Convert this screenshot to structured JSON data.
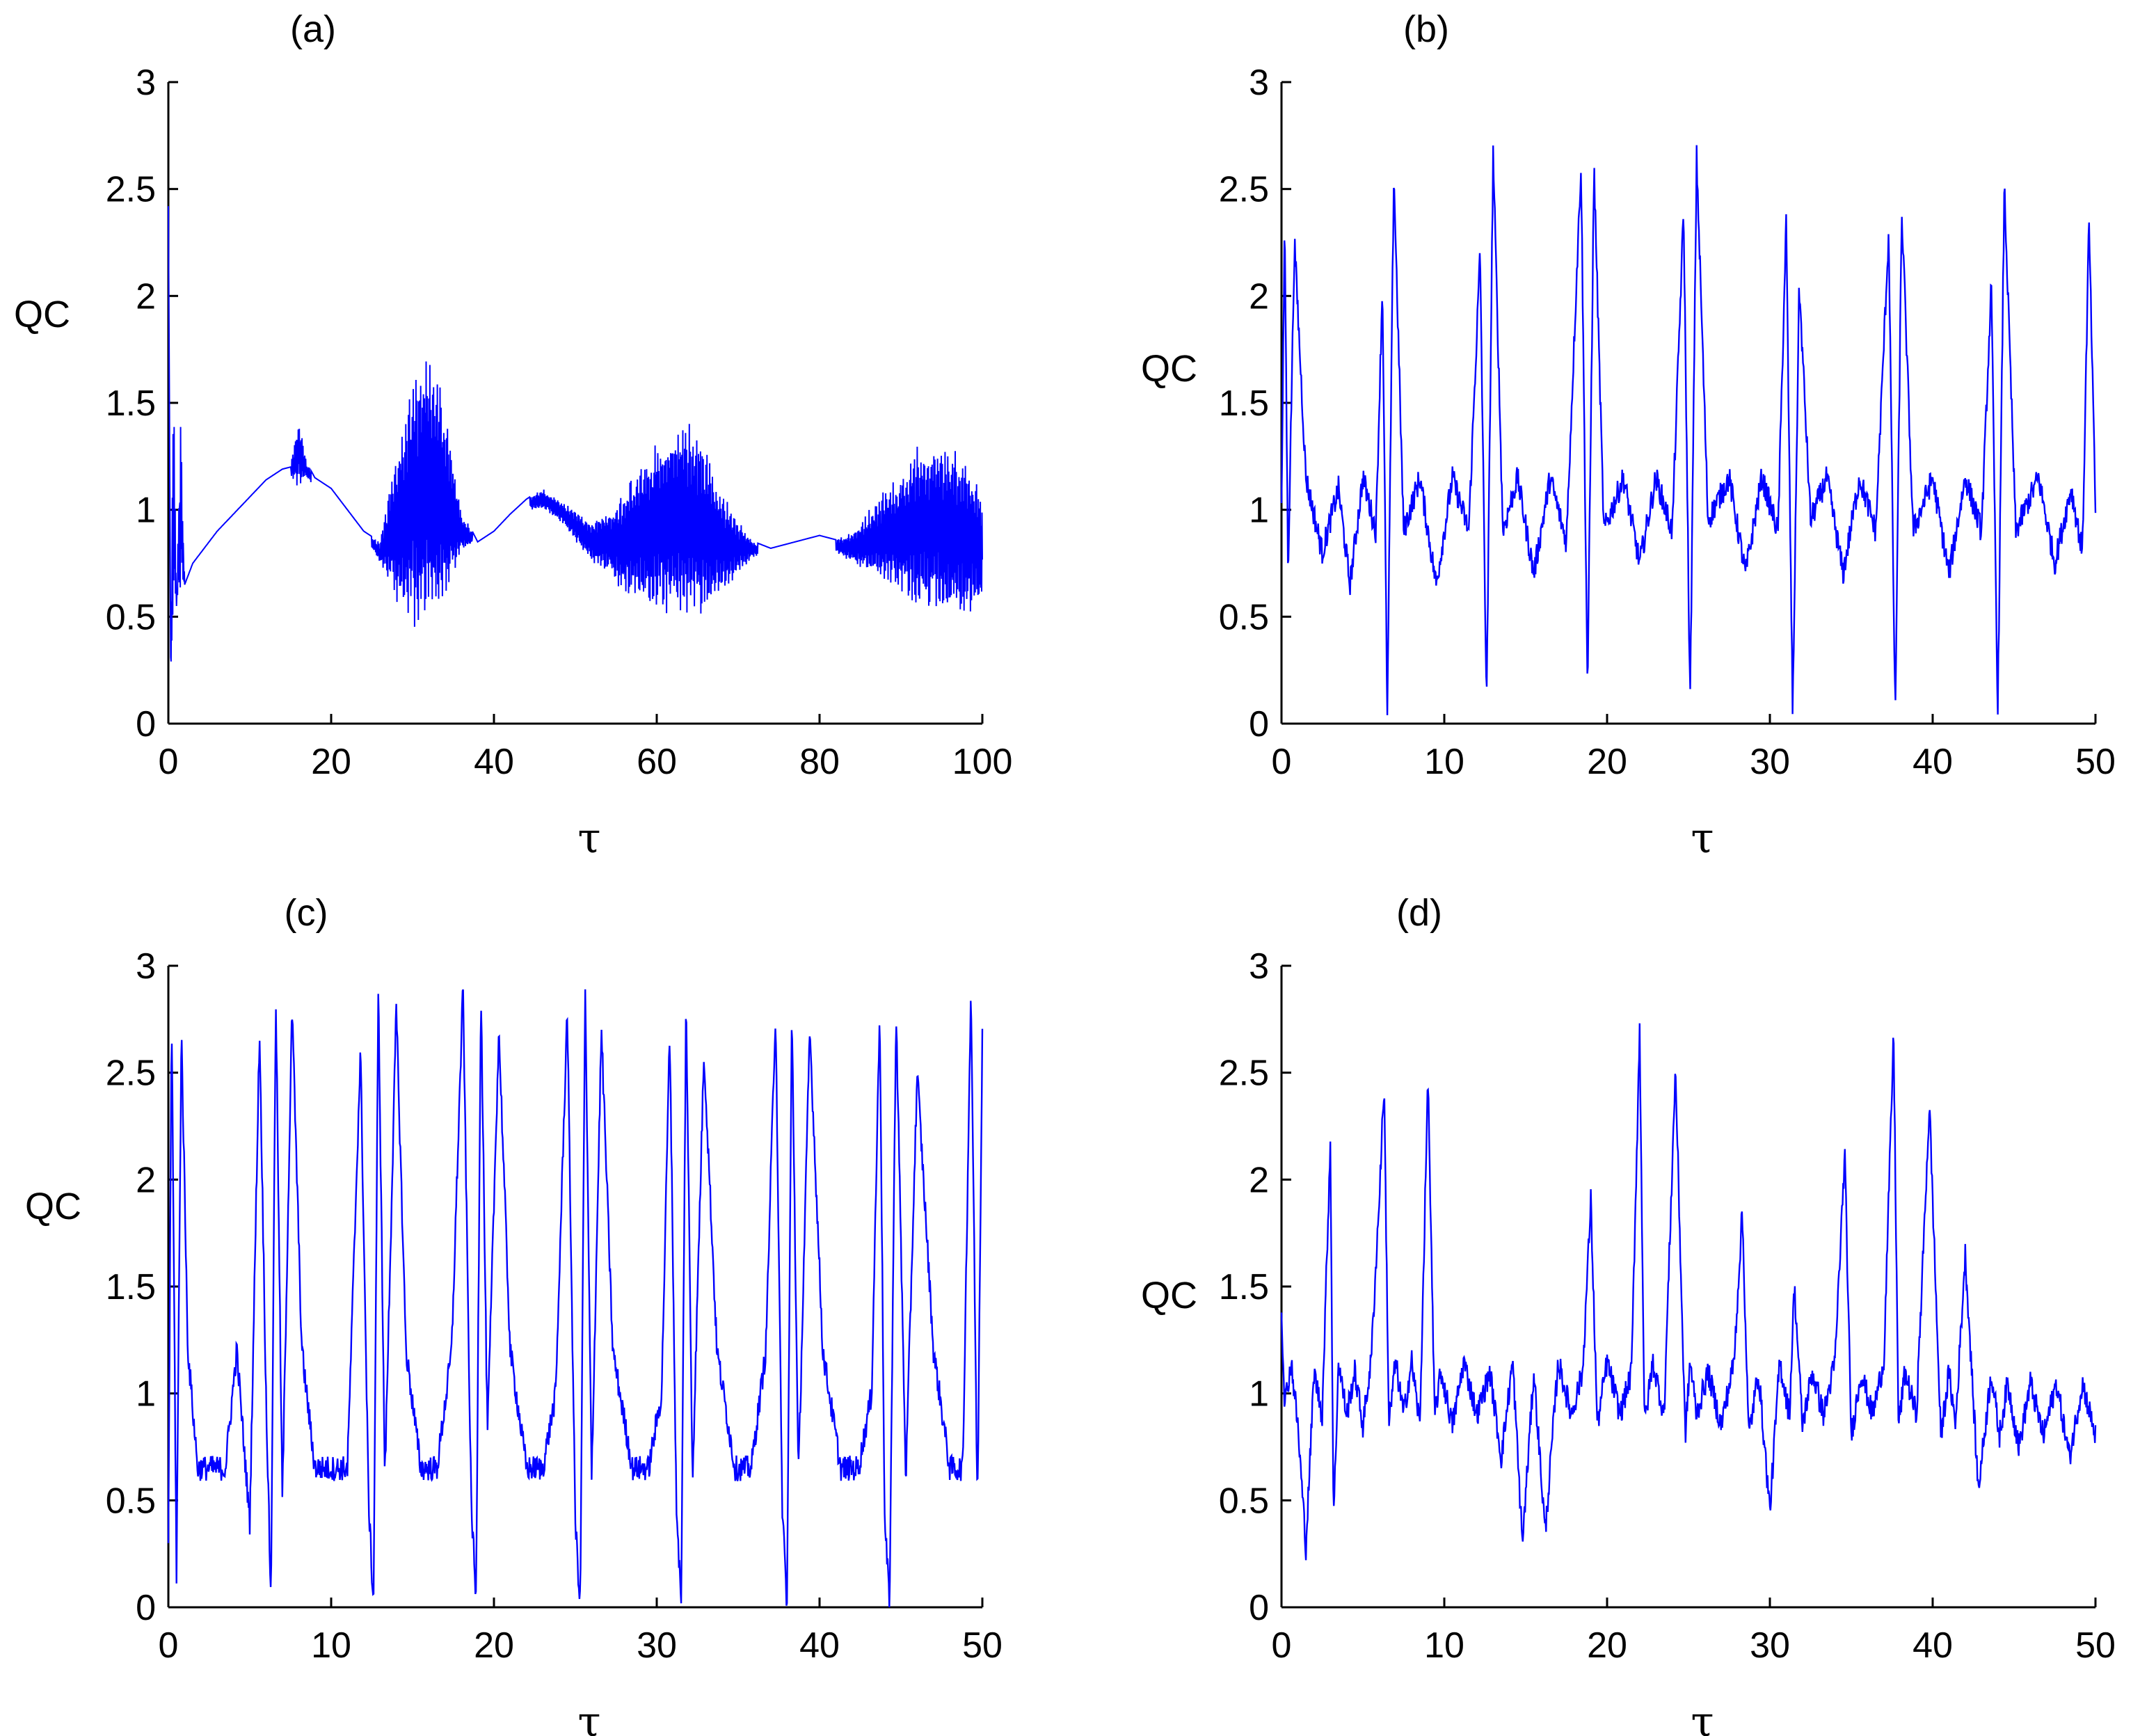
{
  "figure": {
    "line_color": "#0000ff",
    "axis_color": "#000000"
  },
  "chart_data": [
    {
      "type": "line",
      "title": "(a)",
      "xlabel": "τ",
      "ylabel": "QC",
      "xlim": [
        0,
        100
      ],
      "ylim": [
        0,
        3
      ],
      "xticks": [
        "0",
        "20",
        "40",
        "60",
        "80",
        "100"
      ],
      "yticks": [
        "0",
        "0.5",
        "1",
        "1.5",
        "2",
        "2.5",
        "3"
      ],
      "grid": false,
      "series": [
        {
          "values_desc": "",
          "x": [
            0,
            0.3,
            0.6,
            1,
            1.5,
            2,
            3,
            4,
            5,
            6,
            8,
            10,
            12,
            14,
            15,
            16,
            17,
            18,
            20,
            22,
            24,
            26,
            28,
            30,
            32,
            34,
            36,
            38,
            40,
            42,
            44,
            46,
            48,
            50,
            52,
            54,
            56,
            58,
            60,
            62,
            64,
            66,
            68,
            70,
            72,
            74,
            76,
            78,
            80,
            82,
            84,
            86,
            88,
            90,
            92,
            94,
            96,
            98,
            100
          ],
          "y": [
            2.42,
            0.25,
            1.75,
            0.55,
            1.45,
            0.65,
            0.75,
            0.8,
            0.85,
            0.9,
            0.98,
            1.06,
            1.14,
            1.19,
            1.2,
            1.45,
            1.22,
            1.15,
            1.1,
            1.0,
            0.9,
            0.85,
            1.3,
            1.6,
            1.8,
            1.5,
            1.0,
            0.85,
            0.9,
            0.98,
            1.05,
            1.1,
            1.05,
            1.0,
            0.95,
            1.0,
            1.1,
            1.25,
            1.35,
            1.4,
            1.45,
            1.3,
            1.1,
            0.95,
            0.85,
            0.82,
            0.84,
            0.86,
            0.88,
            0.86,
            0.9,
            1.0,
            1.1,
            1.2,
            1.3,
            1.34,
            1.3,
            1.25,
            1.1
          ],
          "envelope_low": [
            2.42,
            0.2,
            0.5,
            0.55,
            0.6,
            0.65,
            0.75,
            0.8,
            0.85,
            0.9,
            0.98,
            1.06,
            1.14,
            1.17,
            1.15,
            1.1,
            1.15,
            1.1,
            1.05,
            0.98,
            0.88,
            0.75,
            0.55,
            0.45,
            0.45,
            0.55,
            0.8,
            0.85,
            0.88,
            0.95,
            1.0,
            1.0,
            0.95,
            0.85,
            0.75,
            0.7,
            0.6,
            0.55,
            0.5,
            0.5,
            0.48,
            0.5,
            0.6,
            0.7,
            0.78,
            0.8,
            0.82,
            0.84,
            0.85,
            0.8,
            0.75,
            0.7,
            0.65,
            0.6,
            0.55,
            0.52,
            0.5,
            0.5,
            0.52
          ]
        }
      ]
    },
    {
      "type": "line",
      "title": "(b)",
      "xlabel": "τ",
      "ylabel": "QC",
      "xlim": [
        0,
        50
      ],
      "ylim": [
        0,
        3
      ],
      "xticks": [
        "0",
        "10",
        "20",
        "30",
        "40",
        "50"
      ],
      "yticks": [
        "0",
        "0.5",
        "1",
        "1.5",
        "2",
        "2.5",
        "3"
      ],
      "grid": false,
      "series": [
        {
          "x": [
            0,
            0.2,
            0.4,
            0.8,
            1.5,
            2.5,
            3.5,
            4.2,
            5,
            5.8,
            6.2,
            6.5,
            6.9,
            7.5,
            8.5,
            9.5,
            10.5,
            11.5,
            12.2,
            12.6,
            13.0,
            13.6,
            14.5,
            15.5,
            16.5,
            17.5,
            18.4,
            18.8,
            19.2,
            19.8,
            21,
            22,
            23,
            24,
            24.7,
            25.1,
            25.5,
            26.2,
            27.5,
            28.5,
            29.5,
            30.5,
            31.0,
            31.4,
            31.8,
            32.5,
            33.5,
            34.5,
            35.5,
            36.5,
            37.3,
            37.7,
            38.1,
            38.8,
            40,
            41,
            42,
            43,
            43.6,
            44.0,
            44.4,
            45.1,
            46.5,
            47.5,
            48.5,
            49.2,
            49.6,
            50
          ],
          "y": [
            1.0,
            2.35,
            0.7,
            2.25,
            1.15,
            0.8,
            1.1,
            0.65,
            1.15,
            0.9,
            2.05,
            0.02,
            2.58,
            0.9,
            1.15,
            0.65,
            1.15,
            0.9,
            2.2,
            0.08,
            2.67,
            0.9,
            1.15,
            0.7,
            1.15,
            0.85,
            2.62,
            0.15,
            2.6,
            0.9,
            1.15,
            0.75,
            1.15,
            0.9,
            2.4,
            0.08,
            2.65,
            0.95,
            1.15,
            0.7,
            1.15,
            0.9,
            2.35,
            0.04,
            2.05,
            0.95,
            1.15,
            0.7,
            1.15,
            0.9,
            2.3,
            0.02,
            2.4,
            0.9,
            1.15,
            0.7,
            1.15,
            0.9,
            2.05,
            0.05,
            2.52,
            0.9,
            1.15,
            0.75,
            1.1,
            0.8,
            2.35,
            1.0
          ]
        }
      ]
    },
    {
      "type": "line",
      "title": "(c)",
      "xlabel": "τ",
      "ylabel": "QC",
      "xlim": [
        0,
        50
      ],
      "ylim": [
        0,
        3
      ],
      "xticks": [
        "0",
        "10",
        "20",
        "30",
        "40",
        "50"
      ],
      "yticks": [
        "0",
        "0.5",
        "1",
        "1.5",
        "2",
        "2.5",
        "3"
      ],
      "grid": false,
      "series": [
        {
          "x": [
            0,
            0.2,
            0.5,
            0.8,
            1.2,
            1.8,
            2.5,
            3.5,
            4.2,
            5.0,
            5.6,
            6.0,
            6.3,
            6.6,
            7.0,
            7.6,
            8.2,
            9,
            10,
            11,
            11.8,
            12.3,
            12.6,
            12.9,
            13.3,
            14,
            14.6,
            15.5,
            16.5,
            17.4,
            18.1,
            18.6,
            18.9,
            19.2,
            19.6,
            20.3,
            21,
            22,
            23,
            23.8,
            24.5,
            25.0,
            25.3,
            25.6,
            26.0,
            26.6,
            27.3,
            28.5,
            29.5,
            30.3,
            30.8,
            31.2,
            31.5,
            31.8,
            32.2,
            32.9,
            33.7,
            34.8,
            35.8,
            36.7,
            37.3,
            37.7,
            38.0,
            38.3,
            38.7,
            39.4,
            40.2,
            41.3,
            42.4,
            43.2,
            43.7,
            44.0,
            44.3,
            44.7,
            45.3,
            46,
            47,
            48,
            48.8,
            49.3,
            49.7,
            50
          ],
          "y": [
            0.3,
            2.8,
            0.15,
            2.7,
            1.2,
            0.65,
            0.65,
            0.65,
            1.2,
            0.4,
            2.7,
            1.0,
            0.02,
            2.88,
            0.5,
            2.8,
            1.2,
            0.65,
            0.65,
            0.65,
            2.6,
            0.5,
            0.0,
            2.9,
            0.6,
            2.8,
            1.2,
            0.65,
            0.65,
            1.2,
            2.9,
            0.5,
            0.02,
            2.9,
            0.8,
            2.7,
            1.2,
            0.65,
            0.65,
            1.0,
            2.8,
            0.4,
            0.0,
            2.9,
            0.6,
            2.7,
            1.2,
            0.65,
            0.65,
            1.0,
            2.7,
            0.5,
            0.0,
            2.85,
            0.6,
            2.6,
            1.2,
            0.65,
            0.65,
            1.2,
            2.8,
            0.5,
            0.0,
            2.8,
            0.6,
            2.7,
            1.2,
            0.65,
            0.65,
            1.0,
            2.8,
            0.4,
            0.02,
            2.8,
            0.6,
            2.5,
            1.2,
            0.65,
            0.65,
            2.9,
            0.45,
            2.7
          ]
        }
      ]
    },
    {
      "type": "line",
      "title": "(d)",
      "xlabel": "τ",
      "ylabel": "QC",
      "xlim": [
        0,
        50
      ],
      "ylim": [
        0,
        3
      ],
      "xticks": [
        "0",
        "10",
        "20",
        "30",
        "40",
        "50"
      ],
      "yticks": [
        "0",
        "0.5",
        "1",
        "1.5",
        "2",
        "2.5",
        "3"
      ],
      "grid": false,
      "series": [
        {
          "x": [
            0,
            0.2,
            0.6,
            1.0,
            1.5,
            2.0,
            2.5,
            3.0,
            3.2,
            3.5,
            4.0,
            4.5,
            5.0,
            5.5,
            6.0,
            6.3,
            6.6,
            7.0,
            7.5,
            8.0,
            8.5,
            9.0,
            9.4,
            9.8,
            10.5,
            11.2,
            12,
            12.8,
            13.5,
            14.2,
            14.8,
            15.5,
            16.2,
            17,
            17.8,
            18.5,
            19.0,
            19.4,
            20,
            20.8,
            21.5,
            22.0,
            22.3,
            22.8,
            23.5,
            24.2,
            24.8,
            25.1,
            25.5,
            26.2,
            27,
            27.8,
            28.3,
            28.7,
            29.3,
            30,
            30.6,
            31.2,
            31.5,
            32.0,
            32.6,
            33.3,
            34,
            34.6,
            35.0,
            35.6,
            36.3,
            37,
            37.6,
            37.9,
            38.3,
            39,
            39.8,
            40.5,
            41.0,
            41.4,
            42,
            42.8,
            43.6,
            44.1,
            44.6,
            45.3,
            46,
            46.8,
            47.6,
            48.4,
            49.2,
            50
          ],
          "y": [
            1.4,
            0.95,
            1.15,
            0.85,
            0.28,
            1.1,
            0.9,
            2.18,
            0.4,
            1.15,
            0.9,
            1.1,
            0.85,
            1.15,
            1.9,
            2.45,
            0.85,
            1.15,
            0.9,
            1.15,
            0.85,
            2.48,
            0.9,
            1.1,
            0.85,
            1.15,
            0.9,
            1.1,
            0.7,
            1.15,
            0.3,
            1.1,
            0.35,
            1.15,
            0.9,
            1.1,
            1.9,
            0.85,
            1.15,
            0.9,
            1.1,
            2.7,
            0.85,
            1.15,
            0.9,
            2.52,
            0.8,
            1.15,
            0.9,
            1.1,
            0.85,
            1.15,
            1.85,
            0.8,
            1.1,
            0.45,
            1.15,
            0.9,
            1.5,
            0.85,
            1.1,
            0.9,
            1.15,
            2.12,
            0.8,
            1.1,
            0.9,
            1.15,
            2.68,
            0.85,
            1.1,
            0.9,
            2.35,
            0.8,
            1.1,
            0.85,
            1.65,
            0.55,
            1.1,
            0.8,
            1.05,
            0.75,
            1.05,
            0.8,
            1.05,
            0.7,
            1.05,
            0.8
          ]
        }
      ]
    }
  ]
}
